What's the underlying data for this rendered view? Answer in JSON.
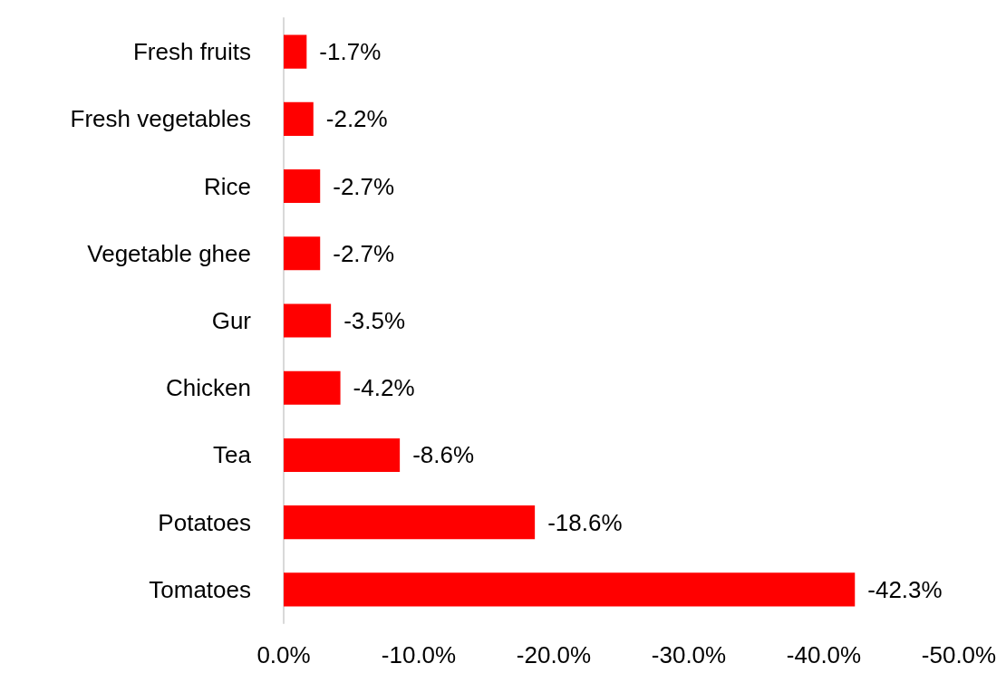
{
  "chart_data": {
    "type": "bar",
    "orientation": "horizontal",
    "categories": [
      "Fresh fruits",
      "Fresh vegetables",
      "Rice",
      "Vegetable ghee",
      "Gur",
      "Chicken",
      "Tea",
      "Potatoes",
      "Tomatoes"
    ],
    "values": [
      -1.7,
      -2.2,
      -2.7,
      -2.7,
      -3.5,
      -4.2,
      -8.6,
      -18.6,
      -42.3
    ],
    "value_labels": [
      "-1.7%",
      "-2.2%",
      "-2.7%",
      "-2.7%",
      "-3.5%",
      "-4.2%",
      "-8.6%",
      "-18.6%",
      "-42.3%"
    ],
    "color": "#ff0000",
    "xlim": [
      0,
      -50
    ],
    "xticks": [
      {
        "value": 0,
        "label": "0.0%"
      },
      {
        "value": -10,
        "label": "-10.0%"
      },
      {
        "value": -20,
        "label": "-20.0%"
      },
      {
        "value": -30,
        "label": "-30.0%"
      },
      {
        "value": -40,
        "label": "-40.0%"
      },
      {
        "value": -50,
        "label": "-50.0%"
      }
    ],
    "grid": false
  }
}
